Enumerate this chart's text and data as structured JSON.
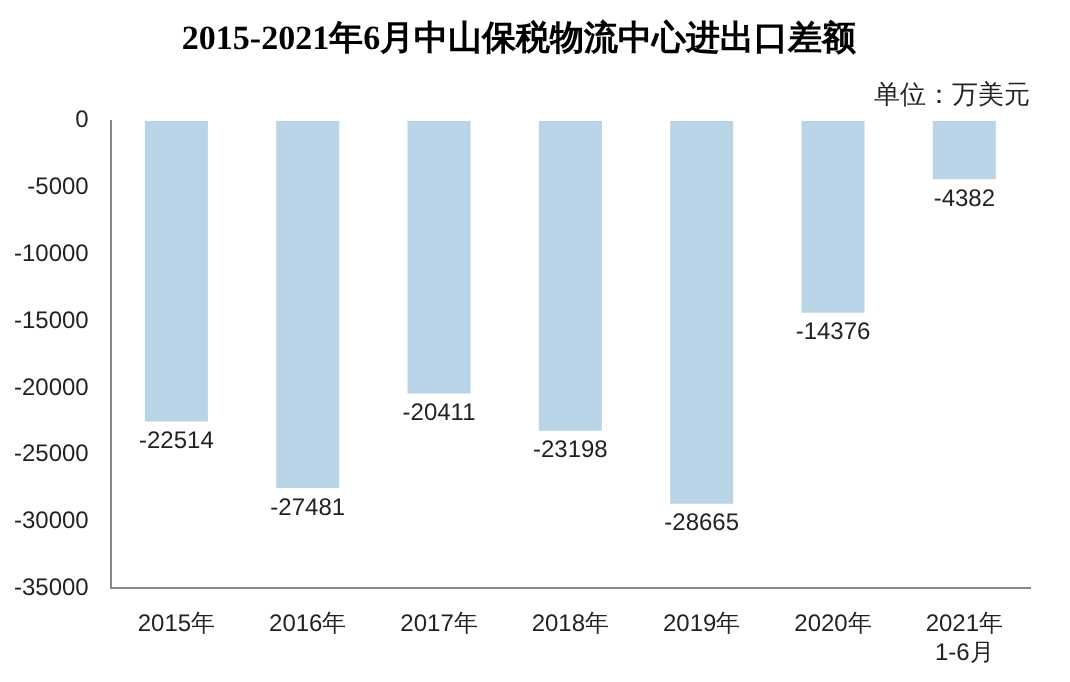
{
  "chart_data": {
    "type": "bar",
    "title": "2015-2021年6月中山保税物流中心进出口差额",
    "annotations": [
      "单位：万美元"
    ],
    "categories": [
      "2015年",
      "2016年",
      "2017年",
      "2018年",
      "2019年",
      "2020年",
      "2021年\n1-6月"
    ],
    "values": [
      -22514,
      -27481,
      -20411,
      -23198,
      -28665,
      -14376,
      -4382
    ],
    "color": "#b8d4e6",
    "ylim": [
      -35000,
      0
    ],
    "yticks": [
      -35000,
      -30000,
      -25000,
      -20000,
      -15000,
      -10000,
      -5000,
      0
    ],
    "data_labels": true,
    "grid": false,
    "legend": false
  }
}
